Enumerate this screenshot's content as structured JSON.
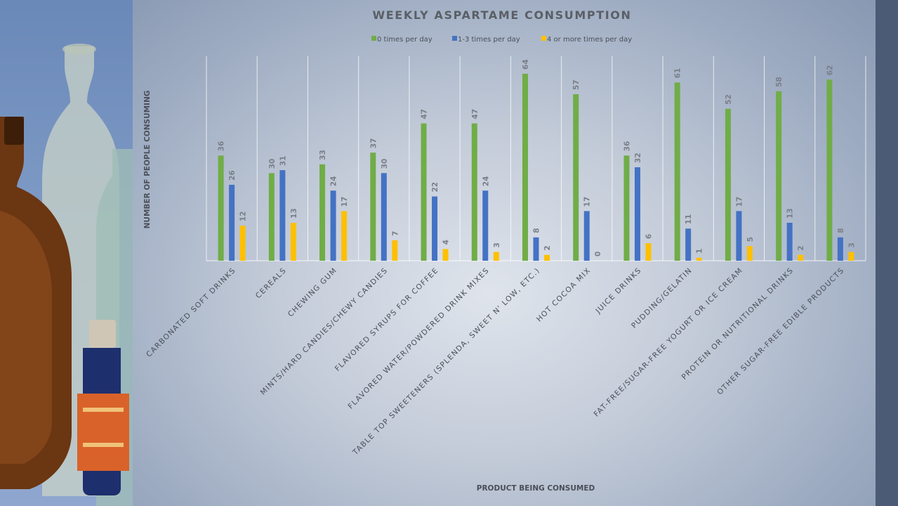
{
  "colors": {
    "series_0": "#70ad47",
    "series_1": "#4472c4",
    "series_2": "#ffc000"
  },
  "chart_data": {
    "type": "bar",
    "title": "WEEKLY ASPARTAME CONSUMPTION",
    "xlabel": "PRODUCT BEING CONSUMED",
    "ylabel": "NUMBER OF PEOPLE CONSUMING",
    "legend_position": "top",
    "grid": "vertical separators between categories",
    "ylim": [
      0,
      70
    ],
    "categories": [
      "CARBONATED SOFT DRINKS",
      "CEREALS",
      "CHEWING GUM",
      "MINTS/HARD CANDIES/CHEWY CANDIES",
      "FLAVORED SYRUPS FOR COFFEE",
      "FLAVORED WATER/POWDERED DRINK MIXES",
      "TABLE TOP SWEETENERS (SPLENDA, SWEET N' LOW, ETC.)",
      "HOT COCOA MIX",
      "JUICE DRINKS",
      "PUDDING/GELATIN",
      "FAT-FREE/SUGAR-FREE YOGURT OR ICE CREAM",
      "PROTEIN OR NUTRITIONAL DRINKS",
      "OTHER SUGAR-FREE EDIBLE PRODUCTS"
    ],
    "series": [
      {
        "name": "0 times per day",
        "values": [
          36,
          30,
          33,
          37,
          47,
          47,
          64,
          57,
          36,
          61,
          52,
          58,
          62
        ]
      },
      {
        "name": "1-3 times per day",
        "values": [
          26,
          31,
          24,
          30,
          22,
          24,
          8,
          17,
          32,
          11,
          17,
          13,
          8
        ]
      },
      {
        "name": "4 or more times per day",
        "values": [
          12,
          13,
          17,
          7,
          4,
          3,
          2,
          0,
          6,
          1,
          5,
          2,
          3
        ]
      }
    ]
  }
}
